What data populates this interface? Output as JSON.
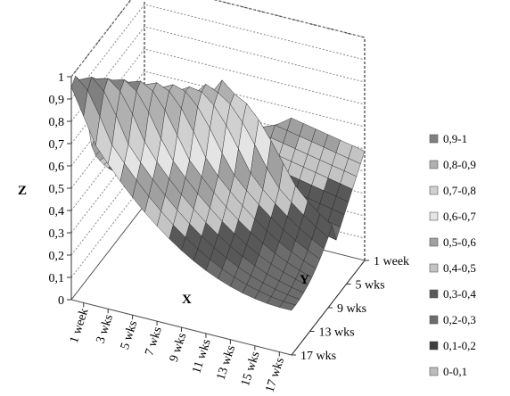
{
  "chart_data": {
    "type": "surface3d",
    "title": "",
    "z_axis": {
      "label": "Z",
      "range": [
        0,
        1
      ],
      "ticks": [
        "0",
        "0,1",
        "0,2",
        "0,3",
        "0,4",
        "0,5",
        "0,6",
        "0,7",
        "0,8",
        "0,9",
        "1"
      ]
    },
    "x_axis": {
      "label": "X",
      "ticks": [
        "1 week",
        "3 wks",
        "5 wks",
        "7 wks",
        "9 wks",
        "11 wks",
        "13 wks",
        "15 wks",
        "17 wks"
      ]
    },
    "y_axis": {
      "label": "Y",
      "ticks": [
        "1 week",
        "5 wks",
        "9 wks",
        "13 wks",
        "17 wks"
      ]
    },
    "legend": {
      "position": "right",
      "entries": [
        {
          "label": "0,9-1",
          "color": "#808080"
        },
        {
          "label": "0,8-0,9",
          "color": "#b0b0b0"
        },
        {
          "label": "0,7-0,8",
          "color": "#d0d0d0"
        },
        {
          "label": "0,6-0,7",
          "color": "#e4e4e4"
        },
        {
          "label": "0,5-0,6",
          "color": "#a0a0a0"
        },
        {
          "label": "0,4-0,5",
          "color": "#c4c4c4"
        },
        {
          "label": "0,3-0,4",
          "color": "#585858"
        },
        {
          "label": "0,2-0,3",
          "color": "#6c6c6c"
        },
        {
          "label": "0,1-0,2",
          "color": "#3e3e3e"
        },
        {
          "label": "0-0,1",
          "color": "#bcbcbc"
        }
      ]
    },
    "grid": true
  }
}
